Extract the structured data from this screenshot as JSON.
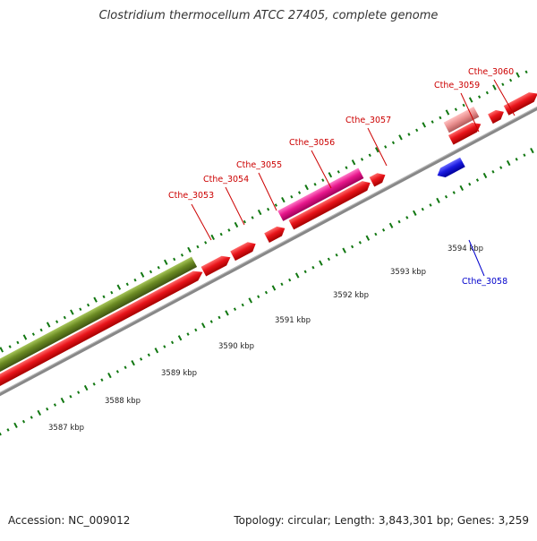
{
  "title": "Clostridium thermocellum ATCC 27405, complete genome",
  "footer": {
    "accession": "Accession: NC_009012",
    "topology": "Topology: circular; Length: 3,843,301 bp; Genes: 3,259"
  },
  "scale_labels": [
    "3587 kbp",
    "3588 kbp",
    "3589 kbp",
    "3590 kbp",
    "3591 kbp",
    "3592 kbp",
    "3593 kbp",
    "3594 kbp"
  ],
  "gene_labels": {
    "forward": [
      "Cthe_3053",
      "Cthe_3054",
      "Cthe_3055",
      "Cthe_3056",
      "Cthe_3057",
      "Cthe_3059",
      "Cthe_3060"
    ],
    "reverse": [
      "Cthe_3058"
    ]
  },
  "colors": {
    "forward_label": "#cc0000",
    "reverse_label": "#0000cc",
    "cds_red": "#e8141a",
    "cds_pink": "#e8178c",
    "cds_lightpink": "#e88c8c",
    "cds_olive": "#6b8a23",
    "cds_blue": "#1a1ae0",
    "backbone": "#888888",
    "ticks": "#117711"
  }
}
